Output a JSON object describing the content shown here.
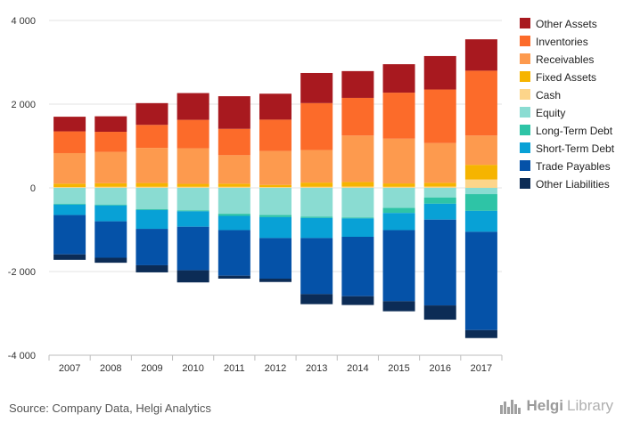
{
  "chart_data": {
    "type": "bar",
    "stacked": true,
    "categories": [
      "2007",
      "2008",
      "2009",
      "2010",
      "2011",
      "2012",
      "2013",
      "2014",
      "2015",
      "2016",
      "2017"
    ],
    "ylim": [
      -4000,
      4000
    ],
    "yticks": [
      4000,
      2000,
      0,
      -2000,
      -4000
    ],
    "ytick_labels": [
      "4 000",
      "2 000",
      "0",
      "-2 000",
      "-4 000"
    ],
    "grid": true,
    "legend_position": "right",
    "positive_series": [
      {
        "name": "Cash",
        "color": "#fdd58a",
        "values": [
          20,
          25,
          25,
          25,
          25,
          20,
          25,
          30,
          25,
          30,
          200
        ]
      },
      {
        "name": "Fixed Assets",
        "color": "#f6b400",
        "values": [
          80,
          85,
          90,
          70,
          75,
          50,
          100,
          110,
          80,
          90,
          350
        ]
      },
      {
        "name": "Receivables",
        "color": "#fd9a4e",
        "values": [
          730,
          750,
          840,
          850,
          680,
          810,
          780,
          1110,
          1070,
          950,
          700
        ]
      },
      {
        "name": "Inventories",
        "color": "#fc6b2a",
        "values": [
          520,
          480,
          550,
          680,
          630,
          750,
          1120,
          900,
          1100,
          1280,
          1550
        ]
      },
      {
        "name": "Other Assets",
        "color": "#a8191f",
        "values": [
          350,
          370,
          520,
          640,
          780,
          620,
          720,
          640,
          680,
          800,
          750
        ]
      }
    ],
    "negative_series": [
      {
        "name": "Equity",
        "color": "#8adcd2",
        "values": [
          380,
          400,
          510,
          540,
          620,
          650,
          690,
          710,
          480,
          230,
          150
        ]
      },
      {
        "name": "Long-Term Debt",
        "color": "#2ec4a6",
        "values": [
          20,
          20,
          20,
          20,
          50,
          50,
          30,
          20,
          120,
          150,
          400
        ]
      },
      {
        "name": "Short-Term Debt",
        "color": "#08a1d6",
        "values": [
          250,
          380,
          450,
          370,
          340,
          500,
          480,
          440,
          410,
          380,
          500
        ]
      },
      {
        "name": "Trade Payables",
        "color": "#0552a8",
        "values": [
          940,
          870,
          870,
          1040,
          1090,
          970,
          1340,
          1420,
          1700,
          2050,
          2350
        ]
      },
      {
        "name": "Other Liabilities",
        "color": "#0c2c56",
        "values": [
          130,
          120,
          170,
          290,
          70,
          80,
          240,
          210,
          240,
          340,
          190
        ]
      }
    ],
    "legend": [
      "Other Assets",
      "Inventories",
      "Receivables",
      "Fixed Assets",
      "Cash",
      "Equity",
      "Long-Term Debt",
      "Short-Term Debt",
      "Trade Payables",
      "Other Liabilities"
    ],
    "legend_colors": [
      "#a8191f",
      "#fc6b2a",
      "#fd9a4e",
      "#f6b400",
      "#fdd58a",
      "#8adcd2",
      "#2ec4a6",
      "#08a1d6",
      "#0552a8",
      "#0c2c56"
    ]
  },
  "footer": {
    "source": "Source: Company Data, Helgi Analytics",
    "brand_part1": "Helgi",
    "brand_part2": "Library"
  }
}
